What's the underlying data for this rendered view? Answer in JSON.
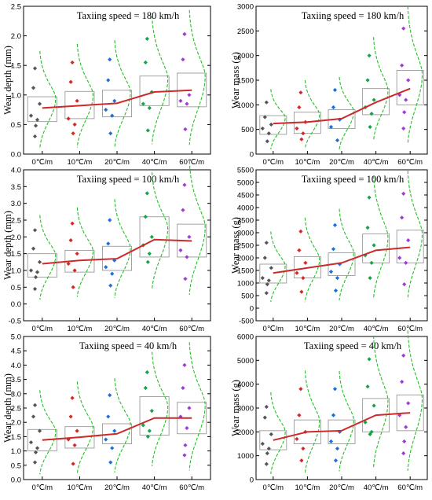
{
  "chart_data": [
    {
      "type": "box",
      "title": "Taxiing speed = 180 km/h",
      "xlabel": "",
      "ylabel": "Wear depth (mm)",
      "categories": [
        "0℃/m",
        "10℃/m",
        "20℃/m",
        "40℃/m",
        "60℃/m"
      ],
      "ylim": [
        0,
        2.5
      ],
      "yticks": [
        0.0,
        0.5,
        1.0,
        1.5,
        2.0,
        2.5
      ],
      "ytick_labels": [
        "0.0",
        "0.5",
        "1.0",
        "1.5",
        "2.0",
        "2.5"
      ],
      "box_lower": [
        0.55,
        0.6,
        0.63,
        0.82,
        0.8
      ],
      "box_upper": [
        0.97,
        1.06,
        1.08,
        1.32,
        1.37
      ],
      "whisker_low": [
        0.28,
        0.3,
        0.3,
        0.4,
        0.4
      ],
      "whisker_high": [
        1.45,
        1.55,
        1.6,
        1.95,
        2.03
      ],
      "mean_line": [
        0.78,
        0.82,
        0.86,
        1.05,
        1.08
      ],
      "points": [
        [
          1.45,
          1.12,
          0.85,
          0.65,
          0.58,
          0.48,
          0.3
        ],
        [
          1.55,
          1.22,
          0.9,
          0.6,
          0.5,
          0.35
        ],
        [
          1.6,
          1.25,
          0.9,
          0.75,
          0.65,
          0.35
        ],
        [
          1.95,
          1.55,
          1.05,
          0.85,
          0.78,
          0.4
        ],
        [
          2.03,
          1.6,
          1.0,
          0.9,
          0.85,
          0.42
        ]
      ]
    },
    {
      "type": "box",
      "title": "Taxiing speed = 180 km/h",
      "xlabel": "",
      "ylabel": "Wear mass (g)",
      "categories": [
        "0℃/m",
        "10℃/m",
        "20℃/m",
        "40℃/m",
        "60℃/m"
      ],
      "ylim": [
        0,
        3000
      ],
      "yticks": [
        0,
        500,
        1000,
        1500,
        2000,
        2500,
        3000
      ],
      "ytick_labels": [
        "0",
        "500",
        "1000",
        "1500",
        "2000",
        "2500",
        "3000"
      ],
      "box_lower": [
        400,
        420,
        520,
        800,
        1000
      ],
      "box_upper": [
        780,
        850,
        900,
        1330,
        1700
      ],
      "whisker_low": [
        230,
        250,
        250,
        500,
        500
      ],
      "whisker_high": [
        1100,
        1250,
        1300,
        2000,
        2500
      ],
      "mean_line": [
        620,
        650,
        720,
        1050,
        1330
      ],
      "points": [
        [
          1050,
          750,
          600,
          520,
          420,
          260
        ],
        [
          1250,
          950,
          650,
          520,
          420,
          300
        ],
        [
          1300,
          950,
          700,
          550,
          280
        ],
        [
          2000,
          1500,
          1100,
          950,
          820,
          550
        ],
        [
          2550,
          1800,
          1500,
          1200,
          1100,
          850,
          520
        ]
      ]
    },
    {
      "type": "box",
      "title": "Taxiing speed = 100 km/h",
      "xlabel": "",
      "ylabel": "Wear depth (mm)",
      "categories": [
        "0℃/m",
        "10℃/m",
        "20℃/m",
        "40℃/m",
        "60℃/m"
      ],
      "ylim": [
        -0.5,
        4.0
      ],
      "yticks": [
        -0.5,
        0.0,
        0.5,
        1.0,
        1.5,
        2.0,
        2.5,
        3.0,
        3.5,
        4.0
      ],
      "ytick_labels": [
        "-0.5",
        "0.0",
        "0.5",
        "1.0",
        "1.5",
        "2.0",
        "2.5",
        "3.0",
        "3.5",
        "4.0"
      ],
      "box_lower": [
        0.8,
        0.95,
        1.0,
        1.4,
        1.4
      ],
      "box_upper": [
        1.5,
        1.6,
        1.72,
        2.6,
        2.38
      ],
      "whisker_low": [
        0.4,
        0.5,
        0.5,
        0.8,
        0.7
      ],
      "whisker_high": [
        2.2,
        2.4,
        2.6,
        3.3,
        3.55
      ],
      "mean_line": [
        1.2,
        1.3,
        1.35,
        1.92,
        1.88
      ],
      "points": [
        [
          2.2,
          1.65,
          1.25,
          1.0,
          0.95,
          0.8,
          0.45
        ],
        [
          2.4,
          1.9,
          1.5,
          1.2,
          1.0,
          0.5
        ],
        [
          2.5,
          1.8,
          1.3,
          1.1,
          0.9,
          0.55
        ],
        [
          3.3,
          2.6,
          2.0,
          1.75,
          1.5,
          1.25
        ],
        [
          3.55,
          2.8,
          2.0,
          1.6,
          1.4,
          0.75
        ]
      ]
    },
    {
      "type": "box",
      "title": "Taxiing speed = 100 km/h",
      "xlabel": "",
      "ylabel": "Wear mass (g)",
      "categories": [
        "0℃/m",
        "10℃/m",
        "20℃/m",
        "40℃/m",
        "60℃/m"
      ],
      "ylim": [
        -500,
        5500
      ],
      "yticks": [
        -500,
        0,
        500,
        1000,
        1500,
        2000,
        2500,
        3000,
        3500,
        4000,
        4500,
        5000,
        5500
      ],
      "ytick_labels": [
        "-500",
        "0",
        "500",
        "1000",
        "1500",
        "2000",
        "2500",
        "3000",
        "3500",
        "4000",
        "4500",
        "5000",
        "5500"
      ],
      "box_lower": [
        1000,
        1200,
        1300,
        1800,
        1800
      ],
      "box_upper": [
        1750,
        2050,
        2200,
        2950,
        3100
      ],
      "whisker_low": [
        550,
        600,
        700,
        900,
        900
      ],
      "whisker_high": [
        2550,
        3000,
        3300,
        4400,
        4550
      ],
      "mean_line": [
        1400,
        1600,
        1800,
        2300,
        2420
      ],
      "points": [
        [
          2600,
          2000,
          1600,
          1200,
          1100,
          950,
          600
        ],
        [
          3050,
          2300,
          1800,
          1400,
          1200,
          650
        ],
        [
          3300,
          2350,
          1750,
          1450,
          1200,
          700
        ],
        [
          4400,
          3200,
          2500,
          2100,
          1800,
          1200
        ],
        [
          4550,
          3600,
          2700,
          2000,
          1800,
          950
        ]
      ]
    },
    {
      "type": "box",
      "title": "Taxiing speed = 40 km/h",
      "xlabel": "",
      "ylabel": "Wear depth (mm)",
      "categories": [
        "0℃/m",
        "10℃/m",
        "20℃/m",
        "40℃/m",
        "60℃/m"
      ],
      "ylim": [
        0,
        5.0
      ],
      "yticks": [
        0.0,
        0.5,
        1.0,
        1.5,
        2.0,
        2.5,
        3.0,
        3.5,
        4.0,
        4.5,
        5.0
      ],
      "ytick_labels": [
        "0.0",
        "0.5",
        "1.0",
        "1.5",
        "2.0",
        "2.5",
        "3.0",
        "3.5",
        "4.0",
        "4.5",
        "5.0"
      ],
      "box_lower": [
        1.0,
        1.1,
        1.25,
        1.55,
        1.6
      ],
      "box_upper": [
        1.75,
        1.85,
        1.95,
        2.9,
        2.7
      ],
      "whisker_low": [
        0.5,
        0.55,
        0.6,
        0.9,
        0.8
      ],
      "whisker_high": [
        2.6,
        2.85,
        2.95,
        3.75,
        4.0
      ],
      "mean_line": [
        1.38,
        1.48,
        1.6,
        2.15,
        2.15
      ],
      "points": [
        [
          2.6,
          2.2,
          1.7,
          1.3,
          1.1,
          0.95,
          0.6
        ],
        [
          2.85,
          2.2,
          1.7,
          1.4,
          1.2,
          0.55
        ],
        [
          2.95,
          2.2,
          1.7,
          1.4,
          1.1,
          0.6
        ],
        [
          3.75,
          3.2,
          2.4,
          1.9,
          1.7,
          1.5
        ],
        [
          4.0,
          3.2,
          2.5,
          2.2,
          1.8,
          1.2,
          0.85
        ]
      ]
    },
    {
      "type": "box",
      "title": "Taxiing speed = 40 km/h",
      "xlabel": "",
      "ylabel": "Wear mass (g)",
      "categories": [
        "0℃/m",
        "10℃/m",
        "20℃/m",
        "40℃/m",
        "60℃/m"
      ],
      "ylim": [
        0,
        6000
      ],
      "yticks": [
        0,
        1000,
        2000,
        3000,
        4000,
        5000,
        6000
      ],
      "ytick_labels": [
        "0",
        "1000",
        "2000",
        "3000",
        "4000",
        "5000",
        "6000"
      ],
      "box_lower": [
        1250,
        1500,
        1500,
        2000,
        2050
      ],
      "box_upper": [
        2050,
        2500,
        2500,
        3400,
        3550
      ],
      "whisker_low": [
        600,
        700,
        800,
        1100,
        1000
      ],
      "whisker_high": [
        3050,
        3800,
        3800,
        5050,
        5200
      ],
      "mean_line": [
        1650,
        2000,
        2050,
        2700,
        2800
      ],
      "points": [
        [
          3050,
          2600,
          1900,
          1500,
          1300,
          1100,
          650
        ],
        [
          3800,
          2700,
          2000,
          1700,
          1300,
          800
        ],
        [
          3800,
          2700,
          2000,
          1600,
          1300,
          800
        ],
        [
          5050,
          3900,
          3100,
          2400,
          2000,
          1900
        ],
        [
          5200,
          4100,
          3200,
          2700,
          2200,
          1600,
          1100
        ]
      ]
    }
  ],
  "colors": {
    "box_edge": "#999999",
    "mean_line": "#cc2a2a",
    "distribution_curve": "#22c022",
    "point_colors": [
      "#555555",
      "#d62828",
      "#1e6fd9",
      "#16a34a",
      "#a03ad8"
    ]
  }
}
